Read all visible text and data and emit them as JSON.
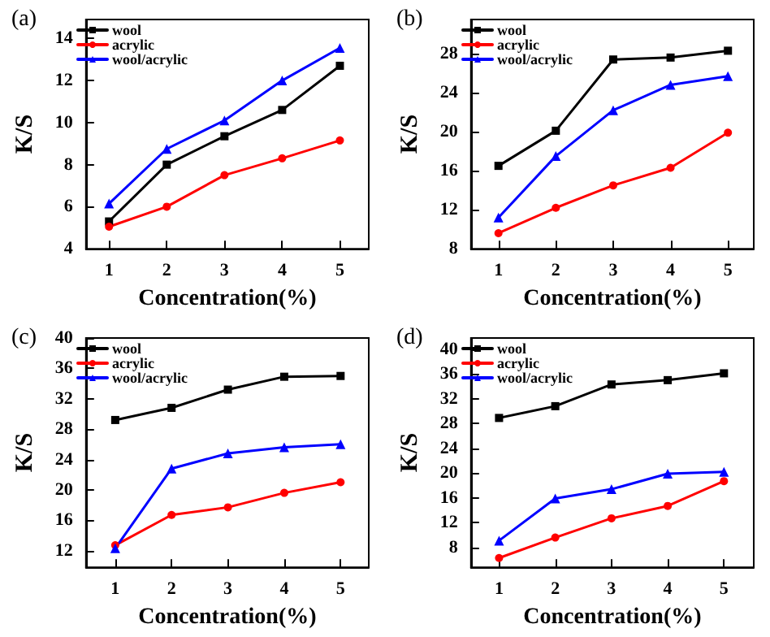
{
  "chart_data": [
    {
      "type": "line",
      "title": "(a)",
      "xlabel": "Concentration(%)",
      "ylabel": "K/S",
      "x": [
        1,
        2,
        3,
        4,
        5
      ],
      "xlim": [
        0.6,
        5.5
      ],
      "xticks": [
        1,
        2,
        3,
        4,
        5
      ],
      "ylim": [
        4,
        14.9
      ],
      "yticks": [
        4,
        6,
        8,
        10,
        12,
        14
      ],
      "legend": "top left",
      "grid": false,
      "series": [
        {
          "name": "wool",
          "color": "#000000",
          "marker": "square",
          "values": [
            5.3,
            8.0,
            9.35,
            10.6,
            12.7
          ]
        },
        {
          "name": "acrylic",
          "color": "#ff0000",
          "marker": "circle",
          "values": [
            5.05,
            6.0,
            7.5,
            8.3,
            9.15
          ]
        },
        {
          "name": "wool/acrylic",
          "color": "#0000ff",
          "marker": "triangle",
          "values": [
            6.15,
            8.75,
            10.1,
            12.0,
            13.55
          ]
        }
      ]
    },
    {
      "type": "line",
      "title": "(b)",
      "xlabel": "Concentration(%)",
      "ylabel": "K/S",
      "x": [
        1,
        2,
        3,
        4,
        5
      ],
      "xlim": [
        0.52,
        5.45
      ],
      "xticks": [
        1,
        2,
        3,
        4,
        5
      ],
      "ylim": [
        8,
        31.5
      ],
      "yticks": [
        8,
        12,
        16,
        20,
        24,
        28
      ],
      "legend": "top left",
      "grid": false,
      "series": [
        {
          "name": "wool",
          "color": "#000000",
          "marker": "square",
          "values": [
            16.5,
            20.1,
            27.4,
            27.6,
            28.3
          ]
        },
        {
          "name": "acrylic",
          "color": "#ff0000",
          "marker": "circle",
          "values": [
            9.6,
            12.2,
            14.5,
            16.3,
            19.9
          ]
        },
        {
          "name": "wool/acrylic",
          "color": "#0000ff",
          "marker": "triangle",
          "values": [
            11.2,
            17.5,
            22.2,
            24.8,
            25.7
          ]
        }
      ]
    },
    {
      "type": "line",
      "title": "(c)",
      "xlabel": "Concentration(%)",
      "ylabel": "K/S",
      "x": [
        1,
        2,
        3,
        4,
        5
      ],
      "xlim": [
        0.48,
        5.5
      ],
      "xticks": [
        1,
        2,
        3,
        4,
        5
      ],
      "ylim": [
        9.8,
        40
      ],
      "yticks": [
        12,
        16,
        20,
        24,
        28,
        32,
        36,
        40
      ],
      "legend": "top left",
      "grid": false,
      "series": [
        {
          "name": "wool",
          "color": "#000000",
          "marker": "square",
          "values": [
            29.2,
            30.8,
            33.2,
            34.9,
            35.0
          ]
        },
        {
          "name": "acrylic",
          "color": "#ff0000",
          "marker": "circle",
          "values": [
            12.7,
            16.7,
            17.7,
            19.6,
            21.0
          ]
        },
        {
          "name": "wool/acrylic",
          "color": "#0000ff",
          "marker": "triangle",
          "values": [
            12.3,
            22.8,
            24.8,
            25.6,
            26.0
          ]
        }
      ]
    },
    {
      "type": "line",
      "title": "(d)",
      "xlabel": "Concentration(%)",
      "ylabel": "K/S",
      "x": [
        1,
        2,
        3,
        4,
        5
      ],
      "xlim": [
        0.5,
        5.53
      ],
      "xticks": [
        1,
        2,
        3,
        4,
        5
      ],
      "ylim": [
        4.8,
        41.8
      ],
      "yticks": [
        8,
        12,
        16,
        20,
        24,
        28,
        32,
        36,
        40
      ],
      "legend": "top left",
      "grid": false,
      "series": [
        {
          "name": "wool",
          "color": "#000000",
          "marker": "square",
          "values": [
            28.9,
            30.8,
            34.3,
            35.0,
            36.1
          ]
        },
        {
          "name": "acrylic",
          "color": "#ff0000",
          "marker": "circle",
          "values": [
            6.3,
            9.6,
            12.7,
            14.7,
            18.7
          ]
        },
        {
          "name": "wool/acrylic",
          "color": "#0000ff",
          "marker": "triangle",
          "values": [
            9.1,
            15.9,
            17.4,
            19.9,
            20.2
          ]
        }
      ]
    }
  ]
}
